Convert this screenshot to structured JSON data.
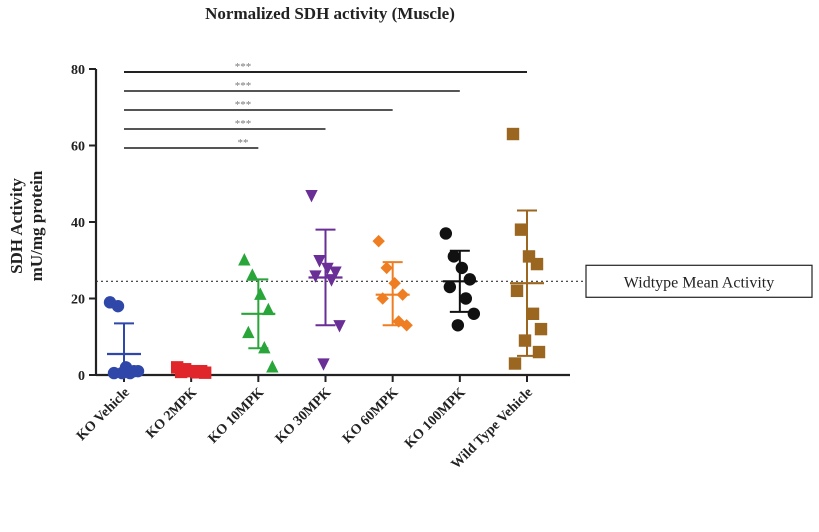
{
  "chart_data": {
    "type": "scatter",
    "title": "Normalized SDH activity (Muscle)",
    "ylabel_line1": "SDH Activity",
    "ylabel_line2": "mU/mg protein",
    "xlabel": "",
    "ylim": [
      0,
      80
    ],
    "yticks": [
      "0",
      "20",
      "40",
      "60",
      "80"
    ],
    "reference_line": {
      "value": 24.5,
      "label": "Widtype Mean Activity"
    },
    "groups": [
      {
        "name": "KO Vehicle",
        "color": "#2e47a8",
        "marker": "circle",
        "points": [
          19,
          18,
          2,
          1,
          0.5,
          0.5,
          1,
          0.5
        ],
        "mean": 5.5,
        "sd_low": 0,
        "sd_high": 13.5
      },
      {
        "name": "KO 2MPK",
        "color": "#e0262b",
        "marker": "square",
        "points": [
          2,
          1.5,
          1,
          1,
          0.8,
          0.7,
          0.6
        ],
        "mean": 1.2,
        "sd_low": 0.6,
        "sd_high": 1.8
      },
      {
        "name": "KO 10MPK",
        "color": "#29a53a",
        "marker": "triangle-up",
        "points": [
          30,
          26,
          21,
          17,
          11,
          7,
          2
        ],
        "mean": 16,
        "sd_low": 7,
        "sd_high": 25
      },
      {
        "name": "KO 30MPK",
        "color": "#6a2f96",
        "marker": "triangle-down",
        "points": [
          47,
          30,
          28,
          27,
          26,
          25,
          13,
          3
        ],
        "mean": 25.5,
        "sd_low": 13,
        "sd_high": 38
      },
      {
        "name": "KO 60MPK",
        "color": "#ef7e22",
        "marker": "diamond",
        "points": [
          35,
          28,
          24,
          21,
          20,
          14,
          13
        ],
        "mean": 21,
        "sd_low": 13,
        "sd_high": 29.5
      },
      {
        "name": "KO 100MPK",
        "color": "#111111",
        "marker": "circle",
        "points": [
          37,
          31,
          28,
          25,
          23,
          20,
          16,
          13
        ],
        "mean": 24.5,
        "sd_low": 16.5,
        "sd_high": 32.5
      },
      {
        "name": "Wild Type Vehicle",
        "color": "#9a6620",
        "marker": "square",
        "points": [
          63,
          38,
          31,
          29,
          22,
          16,
          12,
          9,
          6,
          3
        ],
        "mean": 24,
        "sd_low": 5,
        "sd_high": 43
      }
    ],
    "significance": [
      {
        "from": "KO Vehicle",
        "to": "Wild Type Vehicle",
        "label": "***"
      },
      {
        "from": "KO Vehicle",
        "to": "KO 100MPK",
        "label": "***"
      },
      {
        "from": "KO Vehicle",
        "to": "KO 60MPK",
        "label": "***"
      },
      {
        "from": "KO Vehicle",
        "to": "KO 30MPK",
        "label": "***"
      },
      {
        "from": "KO Vehicle",
        "to": "KO 10MPK",
        "label": "**"
      }
    ]
  }
}
